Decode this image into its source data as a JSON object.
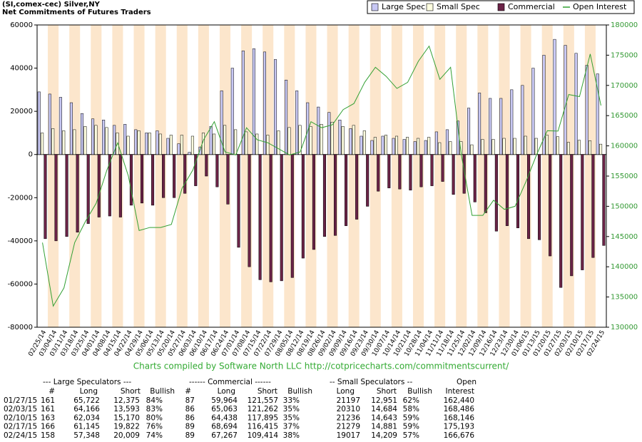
{
  "chart_data": {
    "type": "bar",
    "title": "(SI,comex-cec) Silver,NY",
    "subtitle": "Net Commitments of Futures Traders",
    "credit": "Charts compiled by Software North LLC  http://cotpricecharts.com/commitmentscurrent/",
    "categories": [
      "02/25/14",
      "03/04/14",
      "03/11/14",
      "03/18/14",
      "03/25/14",
      "04/01/14",
      "04/08/14",
      "04/15/14",
      "04/22/14",
      "04/29/14",
      "05/06/14",
      "05/13/14",
      "05/20/14",
      "05/27/14",
      "06/03/14",
      "06/10/14",
      "06/17/14",
      "06/24/14",
      "07/01/14",
      "07/08/14",
      "07/15/14",
      "07/22/14",
      "07/29/14",
      "08/05/14",
      "08/12/14",
      "08/19/14",
      "08/26/14",
      "09/02/14",
      "09/09/14",
      "09/16/14",
      "09/23/14",
      "09/30/14",
      "10/07/14",
      "10/14/14",
      "10/21/14",
      "10/28/14",
      "11/04/14",
      "11/11/14",
      "11/18/14",
      "11/25/14",
      "12/02/14",
      "12/09/14",
      "12/16/14",
      "12/23/14",
      "12/30/14",
      "01/06/15",
      "01/13/15",
      "01/20/15",
      "01/27/15",
      "02/03/15",
      "02/10/15",
      "02/17/15",
      "02/24/15"
    ],
    "series": [
      {
        "name": "Large Spec",
        "color": "#c8c8f4",
        "type": "bar",
        "values": [
          29000,
          28000,
          26500,
          24000,
          19000,
          16500,
          16000,
          13500,
          14000,
          11500,
          10000,
          11000,
          7500,
          5000,
          1000,
          3500,
          13000,
          29500,
          40000,
          48000,
          49000,
          47500,
          44000,
          34500,
          29500,
          24000,
          22000,
          19500,
          16000,
          12000,
          8500,
          6500,
          8500,
          7500,
          7000,
          6000,
          6500,
          10500,
          11500,
          15500,
          21500,
          28500,
          26000,
          26000,
          30000,
          32000,
          40000,
          46000,
          53347,
          50573,
          46864,
          41323,
          37339
        ]
      },
      {
        "name": "Small Spec",
        "color": "#ffffe0",
        "type": "bar",
        "values": [
          10000,
          12000,
          11000,
          11500,
          13000,
          13500,
          12500,
          10000,
          8500,
          11000,
          10000,
          9500,
          9000,
          9000,
          8500,
          10000,
          9500,
          13500,
          11500,
          10500,
          9500,
          9000,
          11000,
          12500,
          13500,
          13000,
          14000,
          15000,
          13000,
          13500,
          11000,
          8000,
          9000,
          8500,
          8000,
          7500,
          8000,
          5500,
          6000,
          6000,
          4500,
          7000,
          7000,
          7500,
          7500,
          8500,
          7500,
          9000,
          8246,
          5626,
          6593,
          6398,
          4808
        ]
      },
      {
        "name": "Commercial",
        "color": "#6b2347",
        "type": "bar",
        "values": [
          -39000,
          -40000,
          -38000,
          -36000,
          -32000,
          -29000,
          -28500,
          -29000,
          -23500,
          -22500,
          -23500,
          -20000,
          -20000,
          -18000,
          -14500,
          -10000,
          -15000,
          -23000,
          -43000,
          -52000,
          -58000,
          -59000,
          -58500,
          -57000,
          -48000,
          -44000,
          -38000,
          -37500,
          -33000,
          -30000,
          -24000,
          -17000,
          -15500,
          -16000,
          -16500,
          -15000,
          -14500,
          -12500,
          -18500,
          -18000,
          -22000,
          -27000,
          -35500,
          -33000,
          -34000,
          -39000,
          -39500,
          -47000,
          -61593,
          -56199,
          -53457,
          -47721,
          -42147
        ]
      },
      {
        "name": "Open Interest",
        "color": "#33a033",
        "type": "line",
        "axis": "y2",
        "values": [
          144000,
          133500,
          136500,
          144000,
          147500,
          150500,
          156000,
          160500,
          155000,
          146000,
          146500,
          146500,
          147000,
          153000,
          156000,
          161000,
          164000,
          159000,
          158500,
          163000,
          161000,
          160500,
          159500,
          158500,
          159000,
          164000,
          163000,
          163500,
          166000,
          167000,
          170500,
          173000,
          171500,
          169500,
          170500,
          174000,
          176500,
          171000,
          173000,
          158500,
          148500,
          148500,
          151000,
          149500,
          150000,
          154000,
          158500,
          162500,
          162440,
          168486,
          168146,
          175193,
          166676
        ]
      }
    ],
    "ylim": [
      -80000,
      60000
    ],
    "yticks": [
      -80000,
      -60000,
      -40000,
      -20000,
      0,
      20000,
      40000,
      60000
    ],
    "y2lim": [
      130000,
      180000
    ],
    "y2ticks": [
      130000,
      135000,
      140000,
      145000,
      150000,
      155000,
      160000,
      165000,
      170000,
      175000,
      180000
    ],
    "legend": "top-right",
    "band_color": "#fce6cc"
  },
  "table": {
    "groups": [
      "--- Large Speculators ---",
      "------ Commercial ------",
      "-- Small Speculators --",
      "Open"
    ],
    "columns": [
      "#",
      "Long",
      "Short",
      "Bullish",
      "#",
      "Long",
      "Short",
      "Bullish",
      "Long",
      "Short",
      "Bullish",
      "Interest"
    ],
    "rows": [
      [
        "01/27/15",
        "161",
        "65,722",
        "12,375",
        "84%",
        "87",
        "59,964",
        "121,557",
        "33%",
        "21197",
        "12,951",
        "62%",
        "162,440"
      ],
      [
        "02/03/15",
        "161",
        "64,166",
        "13,593",
        "83%",
        "86",
        "65,063",
        "121,262",
        "35%",
        "20310",
        "14,684",
        "58%",
        "168,486"
      ],
      [
        "02/10/15",
        "163",
        "62,034",
        "15,170",
        "80%",
        "86",
        "64,438",
        "117,895",
        "35%",
        "21236",
        "14,643",
        "59%",
        "168,146"
      ],
      [
        "02/17/15",
        "166",
        "61,145",
        "19,822",
        "76%",
        "89",
        "68,694",
        "116,415",
        "37%",
        "21279",
        "14,881",
        "59%",
        "175,193"
      ],
      [
        "02/24/15",
        "158",
        "57,348",
        "20,009",
        "74%",
        "89",
        "67,267",
        "109,414",
        "38%",
        "19017",
        "14,209",
        "57%",
        "166,676"
      ]
    ]
  }
}
